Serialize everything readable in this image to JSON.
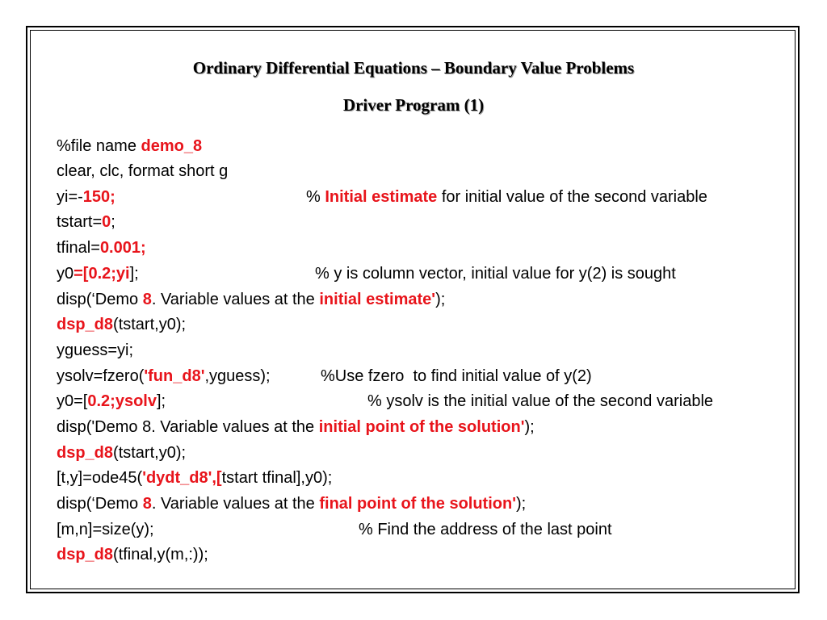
{
  "slide": {
    "title": "Ordinary Differential Equations – Boundary Value Problems",
    "subtitle": "Driver Program (1)",
    "accent_color": "#e8141b",
    "lines": [
      {
        "code": [
          {
            "t": "%file name "
          },
          {
            "t": "demo_8",
            "red": true
          }
        ]
      },
      {
        "code": [
          {
            "t": "clear, clc, format short g"
          }
        ]
      },
      {
        "code": [
          {
            "t": "yi=-"
          },
          {
            "t": "150;",
            "red": true
          }
        ],
        "comment": [
          {
            "t": "% "
          },
          {
            "t": "Initial estimate",
            "red": true
          },
          {
            "t": " for initial value of the second variable"
          }
        ]
      },
      {
        "code": [
          {
            "t": "tstart="
          },
          {
            "t": "0",
            "red": true
          },
          {
            "t": ";"
          }
        ]
      },
      {
        "code": [
          {
            "t": "tfinal="
          },
          {
            "t": "0.001;",
            "red": true
          }
        ]
      },
      {
        "code": [
          {
            "t": "y0"
          },
          {
            "t": "=[0.2;yi",
            "red": true
          },
          {
            "t": "];"
          }
        ],
        "comment": [
          {
            "t": "% y is column vector, initial value for y(2) is sought"
          }
        ]
      },
      {
        "code": [
          {
            "t": "disp(‘Demo "
          },
          {
            "t": "8",
            "red": true
          },
          {
            "t": ". Variable values at the "
          },
          {
            "t": "initial estimate'",
            "red": true
          },
          {
            "t": ");"
          }
        ]
      },
      {
        "code": [
          {
            "t": "dsp_d8",
            "red": true
          },
          {
            "t": "(tstart,y0);"
          }
        ]
      },
      {
        "code": [
          {
            "t": "yguess=yi;"
          }
        ]
      },
      {
        "code": [
          {
            "t": "ysolv=fzero("
          },
          {
            "t": "'fun_d8'",
            "red": true
          },
          {
            "t": ",yguess);"
          }
        ],
        "comment": [
          {
            "t": "%Use fzero  to find initial value of y(2)"
          }
        ]
      },
      {
        "code": [
          {
            "t": "y0=["
          },
          {
            "t": "0.2;ysolv",
            "red": true
          },
          {
            "t": "];"
          }
        ],
        "comment": [
          {
            "t": "% ysolv is the initial value of the second variable"
          }
        ]
      },
      {
        "code": [
          {
            "t": "disp('Demo 8. Variable values at the "
          },
          {
            "t": "initial point of the solution'",
            "red": true
          },
          {
            "t": ");"
          }
        ]
      },
      {
        "code": [
          {
            "t": "dsp_d8",
            "red": true
          },
          {
            "t": "(tstart,y0);"
          }
        ]
      },
      {
        "code": [
          {
            "t": "[t,y]=ode45("
          },
          {
            "t": "'dydt_d8',[",
            "red": true
          },
          {
            "t": "tstart tfinal],y0);"
          }
        ]
      },
      {
        "code": [
          {
            "t": "disp(‘Demo "
          },
          {
            "t": "8",
            "red": true
          },
          {
            "t": ". Variable values at the "
          },
          {
            "t": "final point of the solution'",
            "red": true
          },
          {
            "t": ");"
          }
        ]
      },
      {
        "code": [
          {
            "t": "[m,n]=size(y);"
          }
        ],
        "comment": [
          {
            "t": "% Find the address of the last point"
          }
        ]
      },
      {
        "code": [
          {
            "t": "dsp_d8",
            "red": true
          },
          {
            "t": "(tfinal,y(m,:));"
          }
        ]
      }
    ]
  }
}
